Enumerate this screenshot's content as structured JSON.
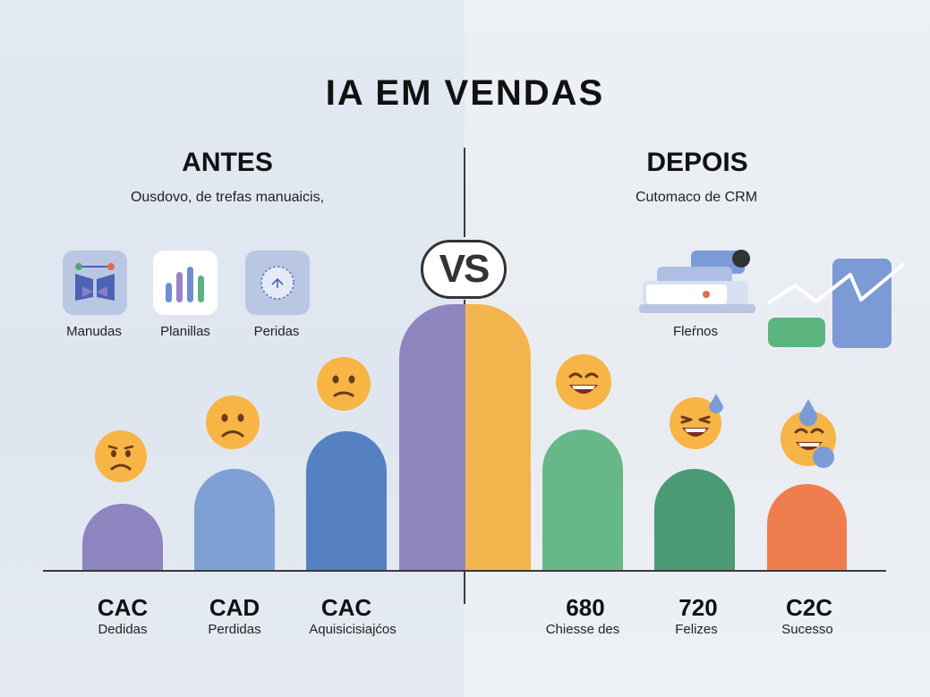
{
  "title": "IA EM VENDAS",
  "vs_label": "VS",
  "left": {
    "heading": "ANTES",
    "subtitle": "Ousdovo, de trefas manuaicis,",
    "icons": [
      {
        "label": "Manudas",
        "icon": "workflow-icon"
      },
      {
        "label": "Planillas",
        "icon": "bar-chart-icon"
      },
      {
        "label": "Peridas",
        "icon": "dotted-circle-icon"
      }
    ],
    "metrics": [
      {
        "value": "CAC",
        "label": "Dedidas"
      },
      {
        "value": "CAD",
        "label": "Perdidas"
      },
      {
        "value": "CAC",
        "label": "Aquisicisiajćos"
      }
    ]
  },
  "right": {
    "heading": "DEPOIS",
    "subtitle": "Cutomaco de CRM",
    "icons": [
      {
        "label": "Fleŕnos",
        "icon": "crm-machine-icon"
      },
      {
        "label": "",
        "icon": "growth-chart-icon"
      }
    ],
    "metrics": [
      {
        "value": "680",
        "label": "Chiesse des"
      },
      {
        "value": "720",
        "label": "Felizes"
      },
      {
        "value": "C2C",
        "label": "Sucesso"
      }
    ]
  },
  "colors": {
    "purple": "#8e84c0",
    "light_blue": "#7fa0d4",
    "blue": "#5580c2",
    "violet": "#8f86c0",
    "yellow": "#f2b54e",
    "green": "#67b888",
    "dark_green": "#4a9b73",
    "orange": "#ef7d4e",
    "emoji_yellow": "#f6b545"
  }
}
